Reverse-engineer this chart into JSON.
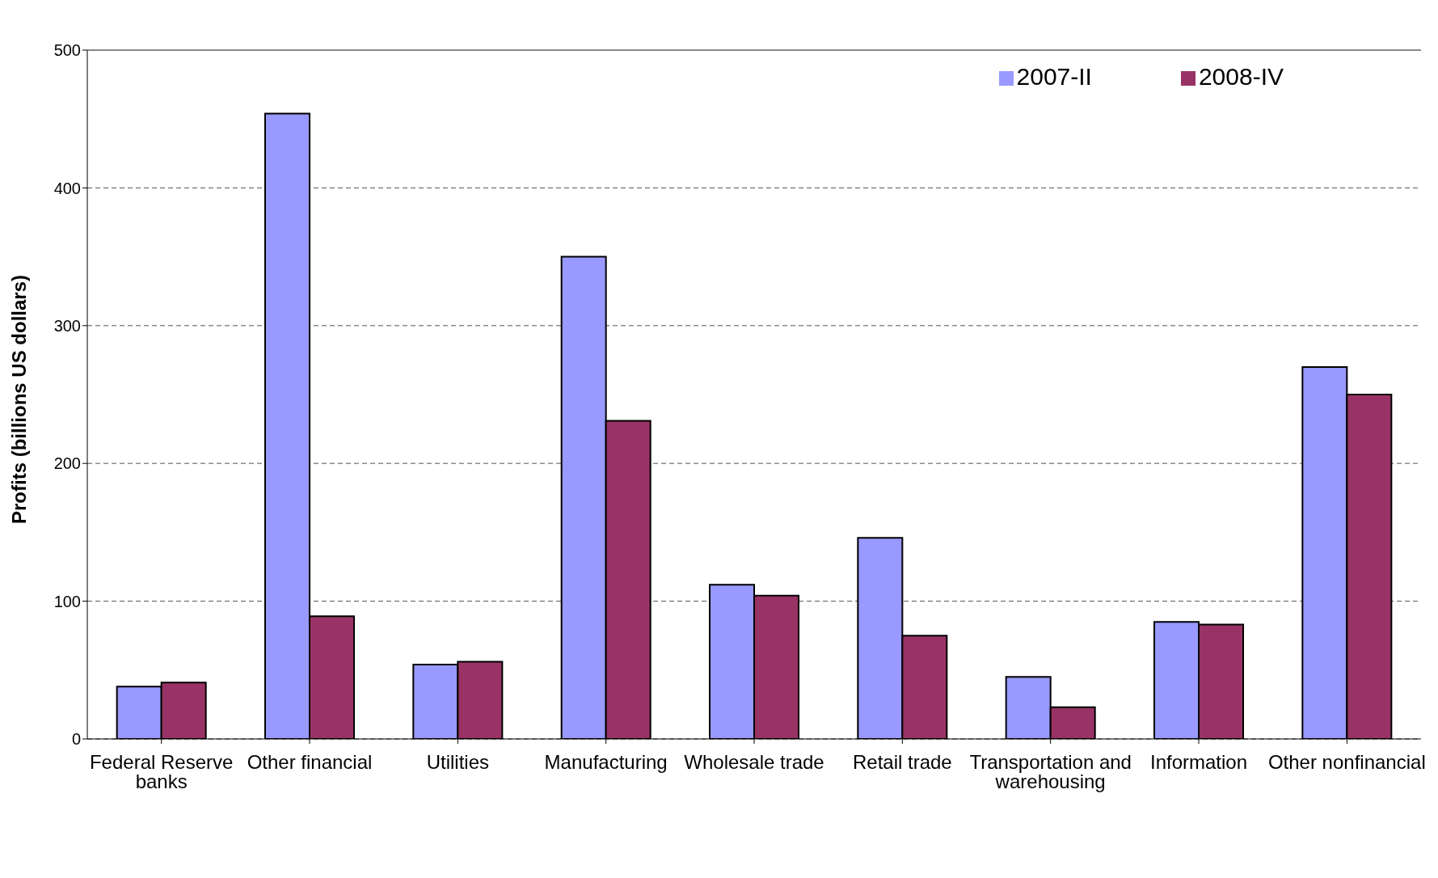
{
  "chart_data": {
    "type": "bar",
    "ylabel": "Profits (billions US dollars)",
    "categories": [
      "Federal Reserve banks",
      "Other financial",
      "Utilities",
      "Manufacturing",
      "Wholesale trade",
      "Retail trade",
      "Transportation and warehousing",
      "Information",
      "Other nonfinancial"
    ],
    "series": [
      {
        "name": "2007-II",
        "color": "#9999ff",
        "values": [
          38,
          454,
          54,
          350,
          112,
          146,
          45,
          85,
          270
        ]
      },
      {
        "name": "2008-IV",
        "color": "#993366",
        "values": [
          41,
          89,
          56,
          231,
          104,
          75,
          23,
          83,
          250
        ]
      }
    ],
    "ylim": [
      0,
      500
    ],
    "yticks": [
      0,
      100,
      200,
      300,
      400,
      500
    ],
    "grid": "y",
    "legend": "top right"
  }
}
